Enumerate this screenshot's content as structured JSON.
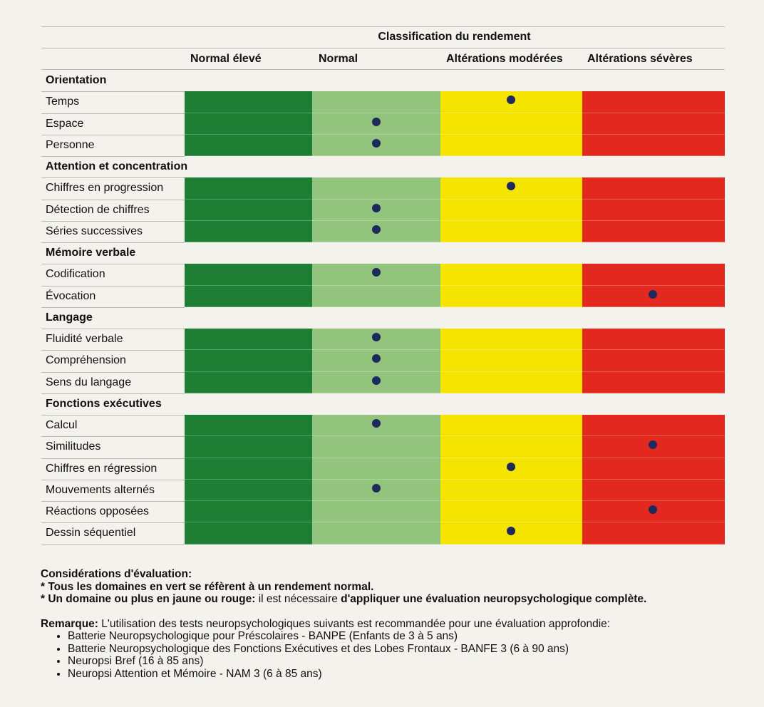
{
  "title": "Classification du rendement",
  "columns": [
    "Normal élevé",
    "Normal",
    "Altérations modérées",
    "Altérations sévères"
  ],
  "colors": [
    "#1e7e34",
    "#93c47d",
    "#f5e400",
    "#e3281f"
  ],
  "sections": [
    {
      "name": "Orientation",
      "rows": [
        {
          "label": "Temps",
          "level": 2
        },
        {
          "label": "Espace",
          "level": 1
        },
        {
          "label": "Personne",
          "level": 1
        }
      ]
    },
    {
      "name": "Attention et concentration",
      "rows": [
        {
          "label": "Chiffres en progression",
          "level": 2
        },
        {
          "label": "Détection de chiffres",
          "level": 1
        },
        {
          "label": "Séries successives",
          "level": 1
        }
      ]
    },
    {
      "name": "Mémoire verbale",
      "rows": [
        {
          "label": "Codification",
          "level": 1
        },
        {
          "label": "Évocation",
          "level": 3
        }
      ]
    },
    {
      "name": "Langage",
      "rows": [
        {
          "label": "Fluidité verbale",
          "level": 1
        },
        {
          "label": "Compréhension",
          "level": 1
        },
        {
          "label": "Sens du langage",
          "level": 1
        }
      ]
    },
    {
      "name": "Fonctions exécutives",
      "rows": [
        {
          "label": "Calcul",
          "level": 1
        },
        {
          "label": "Similitudes",
          "level": 3
        },
        {
          "label": "Chiffres en régression",
          "level": 2
        },
        {
          "label": "Mouvements alternés",
          "level": 1
        },
        {
          "label": "Réactions opposées",
          "level": 3
        },
        {
          "label": "Dessin séquentiel",
          "level": 2
        }
      ]
    }
  ],
  "considerations": {
    "heading": "Considérations d'évaluation:",
    "line1": "* Tous les domaines en vert se réfèrent à un rendement normal.",
    "line2_a": "* Un domaine ou plus en jaune ou rouge:",
    "line2_b": " il est nécessaire ",
    "line2_c": "d'appliquer une évaluation neuropsychologique complète."
  },
  "remark": {
    "label": "Remarque:",
    "text": " L'utilisation des tests neuropsychologiques suivants est recommandée pour une évaluation approfondie:",
    "items": [
      "Batterie Neuropsychologique pour Préscolaires - BANPE (Enfants de 3 à 5 ans)",
      "Batterie Neuropsychologique des Fonctions Exécutives et des Lobes Frontaux - BANFE 3 (6 à 90 ans)",
      "Neuropsi Bref (16 à 85 ans)",
      "Neuropsi Attention et Mémoire - NAM 3 (6 à 85 ans)"
    ]
  }
}
